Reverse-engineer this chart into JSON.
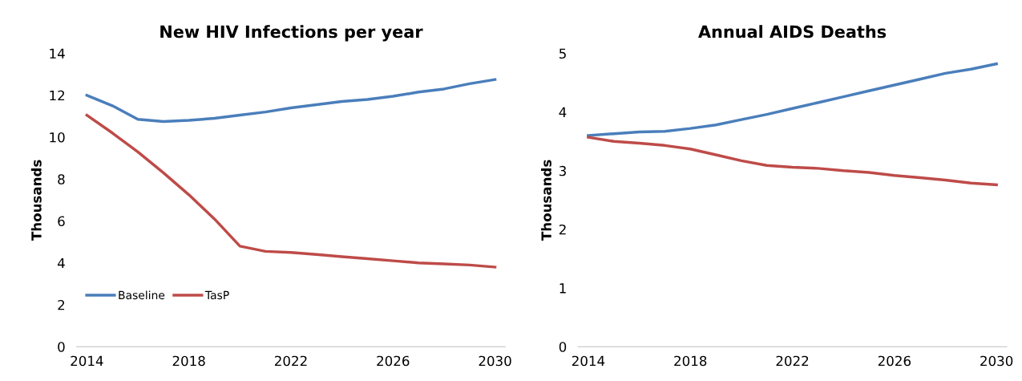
{
  "chart_data": [
    {
      "type": "line",
      "title": "New HIV Infections per year",
      "ylabel": "Thousands",
      "categories": [
        "2014",
        null,
        null,
        null,
        "2018",
        null,
        null,
        null,
        "2022",
        null,
        null,
        null,
        "2026",
        null,
        null,
        null,
        "2030"
      ],
      "series": [
        {
          "name": "Baseline",
          "color": "#4a7ebb",
          "values": [
            12.0,
            11.5,
            10.85,
            10.75,
            10.8,
            10.9,
            11.05,
            11.2,
            11.4,
            11.55,
            11.7,
            11.8,
            11.95,
            12.15,
            12.3,
            12.55,
            12.75
          ]
        },
        {
          "name": "TasP",
          "color": "#be4b48",
          "values": [
            11.05,
            10.2,
            9.3,
            8.3,
            7.25,
            6.1,
            4.8,
            4.55,
            4.5,
            4.4,
            4.3,
            4.2,
            4.1,
            4.0,
            3.95,
            3.9,
            3.8
          ]
        }
      ],
      "ylim": [
        0,
        14
      ],
      "yticks": [
        0,
        2,
        4,
        6,
        8,
        10,
        12,
        14
      ],
      "grid": false,
      "legend": "bottom left"
    },
    {
      "type": "line",
      "title": "Annual AIDS Deaths",
      "ylabel": "Thousands",
      "categories": [
        "2014",
        null,
        null,
        null,
        "2018",
        null,
        null,
        null,
        "2022",
        null,
        null,
        null,
        "2026",
        null,
        null,
        null,
        "2030"
      ],
      "series": [
        {
          "color": "#4a7ebb",
          "values": [
            3.6,
            3.63,
            3.66,
            3.67,
            3.72,
            3.78,
            3.87,
            3.96,
            4.06,
            4.16,
            4.26,
            4.36,
            4.46,
            4.56,
            4.66,
            4.73,
            4.82
          ]
        },
        {
          "color": "#be4b48",
          "values": [
            3.57,
            3.5,
            3.47,
            3.43,
            3.37,
            3.27,
            3.17,
            3.09,
            3.06,
            3.04,
            3.0,
            2.97,
            2.92,
            2.88,
            2.84,
            2.79,
            2.76
          ]
        }
      ],
      "ylim": [
        0,
        5
      ],
      "yticks": [
        0,
        1,
        2,
        3,
        4,
        5
      ],
      "grid": false,
      "legend": false
    }
  ]
}
